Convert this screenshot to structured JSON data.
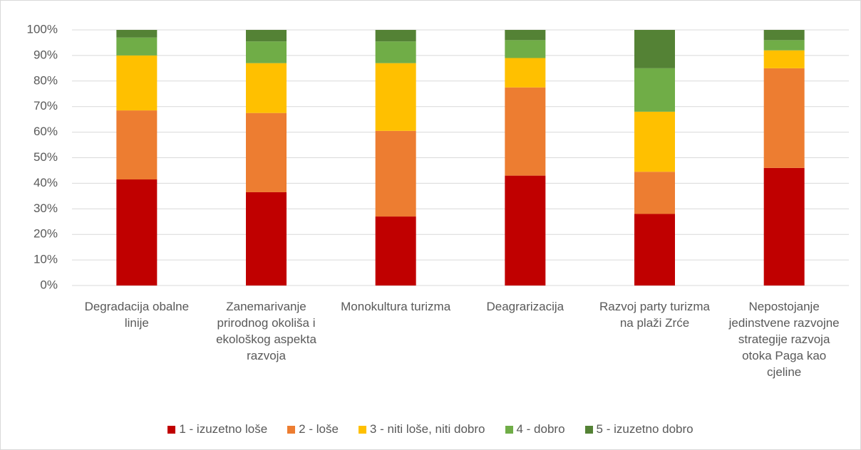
{
  "chart_data": {
    "type": "stacked_bar",
    "categories": [
      "Degradacija obalne linije",
      "Zanemarivanje prirodnog okoliša i ekološkog aspekta razvoja",
      "Monokultura turizma",
      "Deagrarizacija",
      "Razvoj party turizma na plaži Zrće",
      "Nepostojanje jedinstvene razvojne strategije razvoja otoka Paga kao cjeline"
    ],
    "series": [
      {
        "name": "1 - izuzetno loše",
        "color": "#c00000",
        "values": [
          41.5,
          36.5,
          27,
          43,
          28,
          46
        ]
      },
      {
        "name": "2 - loše",
        "color": "#ed7d31",
        "values": [
          27,
          31,
          33.5,
          34.5,
          16.5,
          39
        ]
      },
      {
        "name": "3 - niti loše, niti dobro",
        "color": "#ffc000",
        "values": [
          21.5,
          19.5,
          26.5,
          11.5,
          23.5,
          7
        ]
      },
      {
        "name": "4 - dobro",
        "color": "#70ad47",
        "values": [
          7,
          8.5,
          8.5,
          7,
          17,
          4
        ]
      },
      {
        "name": "5 - izuzetno dobro",
        "color": "#548235",
        "values": [
          3,
          4.5,
          4.5,
          4,
          15,
          4
        ]
      }
    ],
    "ylim": [
      0,
      100
    ],
    "yticks": [
      {
        "value": 0,
        "label": "0%"
      },
      {
        "value": 10,
        "label": "10%"
      },
      {
        "value": 20,
        "label": "20%"
      },
      {
        "value": 30,
        "label": "30%"
      },
      {
        "value": 40,
        "label": "40%"
      },
      {
        "value": 50,
        "label": "50%"
      },
      {
        "value": 60,
        "label": "60%"
      },
      {
        "value": 70,
        "label": "70%"
      },
      {
        "value": 80,
        "label": "80%"
      },
      {
        "value": 90,
        "label": "90%"
      },
      {
        "value": 100,
        "label": "100%"
      }
    ],
    "grid": true,
    "legend": "bottom"
  }
}
